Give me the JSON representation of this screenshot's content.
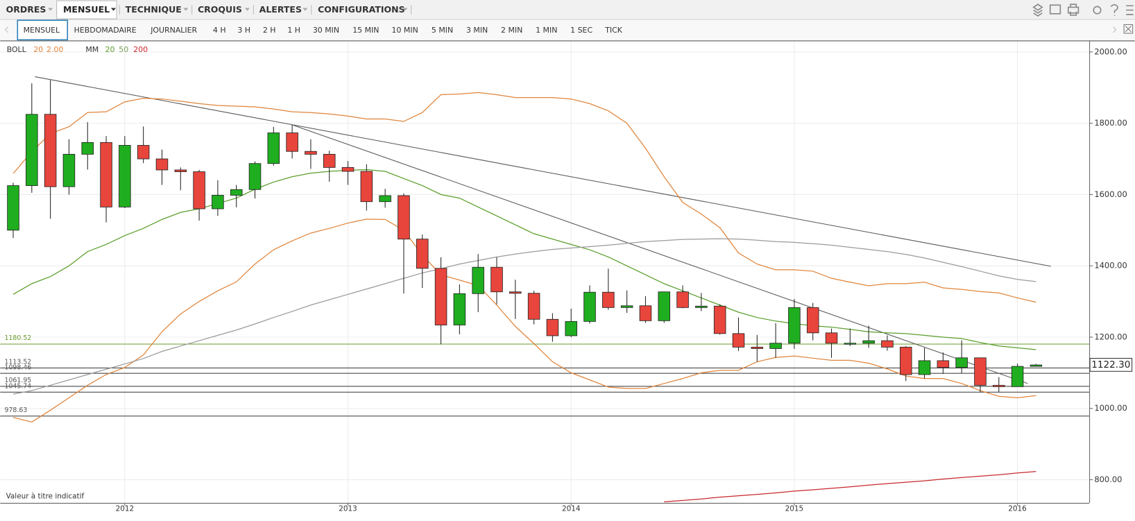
{
  "menu": {
    "items": [
      "ORDRES",
      "MENSUEL",
      "TECHNIQUE",
      "CROQUIS",
      "ALERTES",
      "CONFIGURATIONS"
    ],
    "active": 1
  },
  "tabs": {
    "items": [
      "MENSUEL",
      "HEBDOMADAIRE",
      "JOURNALIER",
      "4 H",
      "3 H",
      "2 H",
      "1 H",
      "30 MIN",
      "15 MIN",
      "10 MIN",
      "5 MIN",
      "3 MIN",
      "2 MIN",
      "1 MIN",
      "1 SEC",
      "TICK"
    ],
    "active": 0
  },
  "indicators": {
    "boll": {
      "label": "BOLL",
      "period": "20",
      "width": "2.00"
    },
    "mm": {
      "label": "MM",
      "p1": "20",
      "p2": "50",
      "p3": "200"
    }
  },
  "note": "Valeur à titre indicatif",
  "chart_data": {
    "type": "candlestick",
    "categories": [
      null,
      null,
      null,
      null,
      null,
      null,
      "2012",
      null,
      null,
      null,
      null,
      null,
      null,
      null,
      null,
      null,
      null,
      null,
      "2013",
      null,
      null,
      null,
      null,
      null,
      null,
      null,
      null,
      null,
      null,
      null,
      "2014",
      null,
      null,
      null,
      null,
      null,
      null,
      null,
      null,
      null,
      null,
      null,
      "2015",
      null,
      null,
      null,
      null,
      null,
      null,
      null,
      null,
      null,
      null,
      null,
      "2016",
      null
    ],
    "open": [
      1500,
      1625,
      1825,
      1622,
      1713,
      1746,
      1565,
      1738,
      1700,
      1669,
      1664,
      1560,
      1598,
      1614,
      1687,
      1773,
      1721,
      1713,
      1676,
      1665,
      1580,
      1597,
      1475,
      1393,
      1234,
      1322,
      1396,
      1327,
      1323,
      1250,
      1204,
      1244,
      1326,
      1283,
      1288,
      1246,
      1327,
      1283,
      1287,
      1210,
      1172,
      1168,
      1183,
      1283,
      1212,
      1183,
      1183,
      1190,
      1172,
      1095,
      1134,
      1115,
      1142,
      1065,
      1061,
      1118
    ],
    "high": [
      1633,
      1912,
      1921,
      1755,
      1803,
      1764,
      1764,
      1791,
      1726,
      1676,
      1669,
      1640,
      1627,
      1693,
      1790,
      1796,
      1755,
      1723,
      1694,
      1685,
      1616,
      1603,
      1488,
      1424,
      1348,
      1433,
      1424,
      1361,
      1330,
      1267,
      1280,
      1345,
      1392,
      1331,
      1315,
      1326,
      1345,
      1324,
      1292,
      1255,
      1206,
      1239,
      1307,
      1296,
      1224,
      1224,
      1232,
      1205,
      1175,
      1170,
      1157,
      1191,
      1142,
      1088,
      1126,
      1125
    ],
    "low": [
      1478,
      1605,
      1532,
      1600,
      1670,
      1522,
      1562,
      1688,
      1627,
      1612,
      1527,
      1540,
      1564,
      1589,
      1681,
      1701,
      1672,
      1636,
      1627,
      1555,
      1563,
      1322,
      1338,
      1180,
      1208,
      1270,
      1292,
      1251,
      1236,
      1187,
      1200,
      1238,
      1277,
      1268,
      1240,
      1240,
      1281,
      1273,
      1207,
      1161,
      1131,
      1142,
      1167,
      1191,
      1142,
      1175,
      1170,
      1162,
      1077,
      1084,
      1097,
      1098,
      1046,
      1046,
      1061,
      1118
    ],
    "close": [
      1625,
      1825,
      1622,
      1713,
      1746,
      1565,
      1738,
      1700,
      1669,
      1664,
      1560,
      1598,
      1614,
      1687,
      1773,
      1721,
      1713,
      1676,
      1665,
      1580,
      1597,
      1475,
      1393,
      1234,
      1322,
      1396,
      1327,
      1323,
      1250,
      1204,
      1244,
      1326,
      1283,
      1288,
      1246,
      1327,
      1283,
      1287,
      1210,
      1172,
      1168,
      1183,
      1283,
      1212,
      1183,
      1183,
      1190,
      1172,
      1095,
      1134,
      1115,
      1142,
      1065,
      1061,
      1118,
      1122
    ],
    "up_color": "#1fae1f",
    "down_color": "#e8453c",
    "overlays": [
      {
        "color": "#e0843a",
        "values": [
          1659,
          1720,
          1771,
          1790,
          1830,
          1832,
          1860,
          1870,
          1868,
          1862,
          1855,
          1850,
          1848,
          1846,
          1840,
          1832,
          1830,
          1826,
          1820,
          1812,
          1812,
          1805,
          1830,
          1880,
          1882,
          1886,
          1880,
          1872,
          1872,
          1872,
          1868,
          1855,
          1835,
          1800,
          1730,
          1650,
          1578,
          1545,
          1507,
          1436,
          1405,
          1389,
          1389,
          1385,
          1365,
          1354,
          1344,
          1350,
          1350,
          1354,
          1338,
          1334,
          1328,
          1324,
          1310,
          1298
        ]
      },
      {
        "color": "#e0843a",
        "values": [
          975,
          962,
          995,
          1030,
          1065,
          1095,
          1115,
          1150,
          1215,
          1265,
          1300,
          1330,
          1355,
          1405,
          1445,
          1470,
          1492,
          1505,
          1520,
          1531,
          1530,
          1500,
          1430,
          1375,
          1360,
          1345,
          1290,
          1230,
          1182,
          1131,
          1100,
          1080,
          1060,
          1056,
          1056,
          1070,
          1084,
          1100,
          1107,
          1107,
          1131,
          1143,
          1147,
          1141,
          1135,
          1135,
          1127,
          1111,
          1091,
          1084,
          1084,
          1070,
          1050,
          1034,
          1030,
          1036
        ]
      },
      {
        "color": "#5a9e2a",
        "values": [
          1320,
          1350,
          1370,
          1400,
          1440,
          1460,
          1485,
          1505,
          1530,
          1550,
          1560,
          1575,
          1590,
          1615,
          1635,
          1650,
          1660,
          1665,
          1668,
          1670,
          1665,
          1645,
          1625,
          1600,
          1590,
          1565,
          1540,
          1515,
          1490,
          1475,
          1460,
          1445,
          1425,
          1400,
          1375,
          1350,
          1330,
          1310,
          1290,
          1270,
          1255,
          1245,
          1238,
          1232,
          1228,
          1222,
          1215,
          1212,
          1210,
          1205,
          1200,
          1196,
          1185,
          1175,
          1170,
          1165
        ]
      },
      {
        "color": "#9a9a9a",
        "values": [
          1040,
          1050,
          1065,
          1080,
          1095,
          1110,
          1125,
          1140,
          1160,
          1175,
          1190,
          1205,
          1220,
          1237,
          1255,
          1272,
          1290,
          1305,
          1320,
          1335,
          1350,
          1365,
          1380,
          1392,
          1405,
          1415,
          1425,
          1433,
          1440,
          1446,
          1450,
          1454,
          1458,
          1463,
          1468,
          1471,
          1474,
          1475,
          1476,
          1475,
          1472,
          1468,
          1466,
          1462,
          1458,
          1452,
          1446,
          1440,
          1432,
          1422,
          1410,
          1398,
          1385,
          1372,
          1362,
          1356
        ]
      },
      {
        "color": "#c8282d",
        "values": [
          null,
          null,
          null,
          null,
          null,
          null,
          null,
          null,
          null,
          null,
          null,
          null,
          null,
          null,
          null,
          null,
          null,
          null,
          null,
          null,
          null,
          null,
          null,
          null,
          null,
          null,
          null,
          null,
          null,
          null,
          null,
          null,
          null,
          null,
          null,
          738,
          742,
          746,
          751,
          755,
          759,
          763,
          768,
          772,
          776,
          780,
          785,
          789,
          793,
          797,
          802,
          806,
          810,
          814,
          819,
          823
        ]
      }
    ],
    "levels": [
      1180.52,
      1113.52,
      1098.46,
      1061.95,
      1045.74,
      978.63
    ],
    "level_colors": [
      "#6a9a2a",
      "#333333",
      "#333333",
      "#333333",
      "#333333",
      "#333333"
    ],
    "last_price": {
      "value": 1122.3,
      "label": "1122.30"
    },
    "ylim": [
      735,
      2030
    ],
    "yticks": [
      {
        "value": 800,
        "label": "800.00"
      },
      {
        "value": 1000,
        "label": "1000.00"
      },
      {
        "value": 1200,
        "label": "1200.00"
      },
      {
        "value": 1400,
        "label": "1400.00"
      },
      {
        "value": 1600,
        "label": "1600.00"
      },
      {
        "value": 1800,
        "label": "1800.00"
      },
      {
        "value": 2000,
        "label": "2000.00"
      }
    ],
    "grid": true
  }
}
